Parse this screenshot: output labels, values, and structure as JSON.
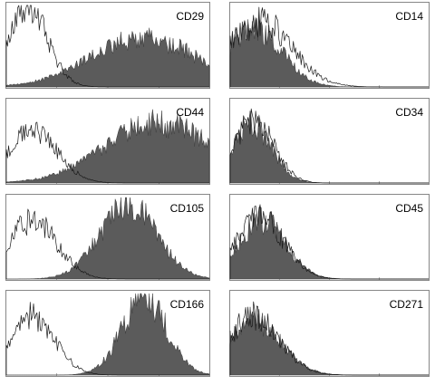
{
  "colors": {
    "stained_fill": "#5b5b5b",
    "control_line": "#1a1a1a",
    "frame": "#6a6a6a"
  },
  "chart_data": [
    {
      "type": "area",
      "title": "CD29",
      "x_scale": "log",
      "control": {
        "mean": 0.1,
        "sd": 0.1,
        "peak": 1.0
      },
      "stained": {
        "mean": 0.68,
        "sd": 0.26,
        "peak": 0.6
      }
    },
    {
      "type": "area",
      "title": "CD44",
      "x_scale": "log",
      "control": {
        "mean": 0.13,
        "sd": 0.12,
        "peak": 0.65
      },
      "stained": {
        "mean": 0.75,
        "sd": 0.26,
        "peak": 0.74
      }
    },
    {
      "type": "area",
      "title": "CD105",
      "x_scale": "log",
      "control": {
        "mean": 0.13,
        "sd": 0.12,
        "peak": 0.72
      },
      "stained": {
        "mean": 0.6,
        "sd": 0.14,
        "peak": 0.92
      }
    },
    {
      "type": "area",
      "title": "CD166",
      "x_scale": "log",
      "control": {
        "mean": 0.13,
        "sd": 0.11,
        "peak": 0.72
      },
      "stained": {
        "mean": 0.68,
        "sd": 0.11,
        "peak": 0.94
      }
    },
    {
      "type": "area",
      "title": "CD14",
      "x_scale": "log",
      "control": {
        "mean": 0.15,
        "sd": 0.16,
        "peak": 0.8
      },
      "stained": {
        "mean": 0.12,
        "sd": 0.14,
        "peak": 0.72
      }
    },
    {
      "type": "area",
      "title": "CD34",
      "x_scale": "log",
      "control": {
        "mean": 0.12,
        "sd": 0.1,
        "peak": 0.78
      },
      "stained": {
        "mean": 0.11,
        "sd": 0.1,
        "peak": 0.72
      }
    },
    {
      "type": "area",
      "title": "CD45",
      "x_scale": "log",
      "control": {
        "mean": 0.15,
        "sd": 0.12,
        "peak": 0.76
      },
      "stained": {
        "mean": 0.16,
        "sd": 0.12,
        "peak": 0.72
      }
    },
    {
      "type": "area",
      "title": "CD271",
      "x_scale": "log",
      "control": {
        "mean": 0.12,
        "sd": 0.13,
        "peak": 0.72
      },
      "stained": {
        "mean": 0.11,
        "sd": 0.14,
        "peak": 0.68
      }
    }
  ]
}
